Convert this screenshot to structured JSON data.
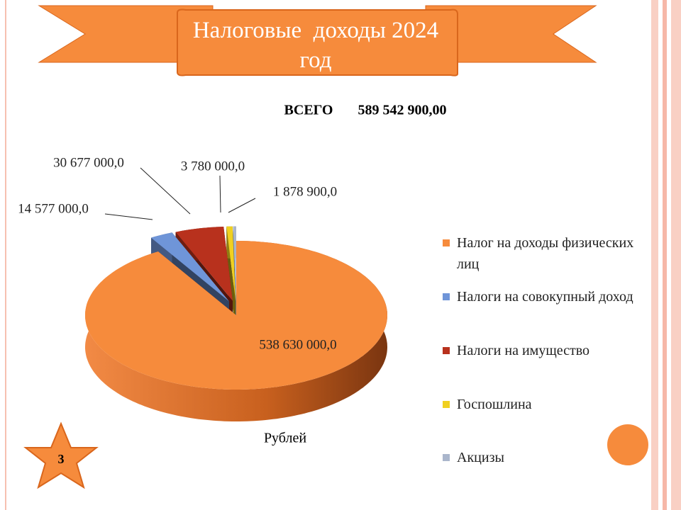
{
  "chart_data": {
    "type": "pie3d",
    "title": "Налоговые  доходы 2024 год",
    "subtitle": "ВСЕГО       589 542 900,00",
    "x_label": "Рублей",
    "categories": [
      "Налог на доходы физических лиц",
      "Налоги на совокупный доход",
      "Налоги на имущество",
      "Госпошлина",
      "Акцизы"
    ],
    "values": [
      538630000,
      14577000,
      30677000,
      3780000,
      1878900
    ],
    "value_labels": [
      "538 630 000,0",
      "14 577 000,0",
      "30 677 000,0",
      "3 780 000,0",
      "1 878 900,0"
    ],
    "colors": [
      "#f68b3c",
      "#6f95d8",
      "#b8311d",
      "#f0d020",
      "#aab6cc"
    ]
  },
  "slide_number": 3
}
